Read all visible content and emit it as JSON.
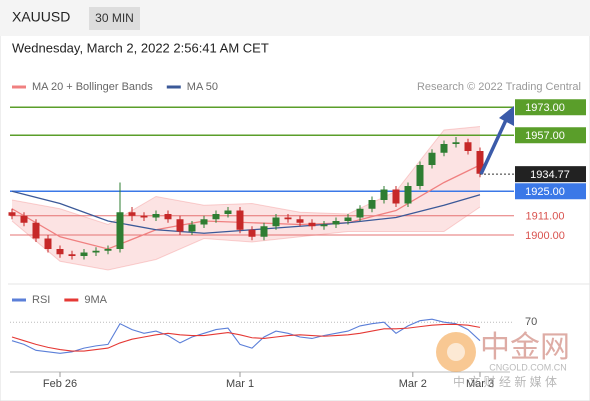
{
  "header": {
    "symbol": "XAUUSD",
    "interval": "30 MIN",
    "timestamp": "Wednesday, March 2, 2022 2:56:41 AM CET",
    "credit": "Research © 2022 Trading Central"
  },
  "chart_data": [
    {
      "type": "candlestick",
      "up_color": "#2e7d32",
      "down_color": "#c62828",
      "open": [
        1913,
        1911,
        1907,
        1898,
        1892,
        1889,
        1888,
        1890,
        1891,
        1892,
        1913,
        1911,
        1910,
        1912,
        1909,
        1902,
        1906,
        1909,
        1912,
        1914,
        1903,
        1899,
        1905,
        1910,
        1909,
        1907,
        1905,
        1906,
        1908,
        1910,
        1915,
        1920,
        1926,
        1918,
        1928,
        1940,
        1947,
        1952,
        1953,
        1948
      ],
      "high": [
        1915,
        1913,
        1909,
        1900,
        1894,
        1891,
        1892,
        1893,
        1894,
        1930,
        1916,
        1913,
        1914,
        1914,
        1911,
        1908,
        1911,
        1914,
        1916,
        1916,
        1905,
        1907,
        1912,
        1912,
        1911,
        1909,
        1908,
        1910,
        1912,
        1917,
        1922,
        1928,
        1928,
        1930,
        1942,
        1949,
        1954,
        1956,
        1955,
        1950
      ],
      "low": [
        1909,
        1905,
        1896,
        1890,
        1887,
        1886,
        1886,
        1888,
        1889,
        1890,
        1908,
        1908,
        1908,
        1907,
        1900,
        1900,
        1904,
        1907,
        1910,
        1901,
        1897,
        1897,
        1903,
        1907,
        1905,
        1903,
        1903,
        1904,
        1906,
        1908,
        1913,
        1918,
        1916,
        1916,
        1926,
        1938,
        1945,
        1950,
        1946,
        1933
      ],
      "close": [
        1911,
        1907,
        1898,
        1892,
        1889,
        1888,
        1890,
        1891,
        1892,
        1913,
        1911,
        1910,
        1912,
        1909,
        1902,
        1906,
        1909,
        1912,
        1914,
        1903,
        1899,
        1905,
        1910,
        1909,
        1907,
        1905,
        1906,
        1908,
        1910,
        1915,
        1920,
        1926,
        1918,
        1928,
        1940,
        1947,
        1952,
        1953,
        1948,
        1935
      ],
      "xlim": [
        0,
        39
      ],
      "ylim": [
        1880,
        1980
      ],
      "xticks": [
        {
          "value": 4,
          "label": "Feb 26"
        },
        {
          "value": 19,
          "label": "Mar 1"
        },
        {
          "value": 33.4,
          "label": "Mar 2"
        },
        {
          "value": 39,
          "label": "Mar 3"
        }
      ],
      "series": [
        {
          "name": "MA 20 + Bollinger Bands",
          "color": "#f08080",
          "x": [
            0,
            4,
            8,
            12,
            16,
            20,
            24,
            28,
            32,
            36,
            39
          ],
          "values": [
            1915,
            1899,
            1892,
            1903,
            1908,
            1907,
            1906,
            1907,
            1914,
            1930,
            1940
          ],
          "upper": [
            1920,
            1915,
            1906,
            1922,
            1917,
            1918,
            1913,
            1912,
            1925,
            1960,
            1962
          ],
          "lower": [
            1908,
            1885,
            1880,
            1886,
            1898,
            1896,
            1899,
            1902,
            1902,
            1902,
            1916
          ]
        },
        {
          "name": "MA 50",
          "color": "#3b5998",
          "x": [
            0,
            4,
            8,
            12,
            16,
            20,
            24,
            28,
            32,
            36,
            39
          ],
          "values": [
            1925,
            1918,
            1908,
            1903,
            1901,
            1903,
            1905,
            1907,
            1910,
            1917,
            1923
          ]
        }
      ],
      "levels": [
        {
          "value": 1973,
          "label": "1973.00",
          "color": "#5a9e2a",
          "style": "box"
        },
        {
          "value": 1957,
          "label": "1957.00",
          "color": "#5a9e2a",
          "style": "box"
        },
        {
          "value": 1925,
          "label": "1925.00",
          "color": "#3b78e7",
          "style": "box"
        },
        {
          "value": 1911,
          "label": "1911.00",
          "color": "#e57373",
          "style": "text"
        },
        {
          "value": 1900,
          "label": "1900.00",
          "color": "#e57373",
          "style": "text"
        }
      ],
      "last_price": {
        "value": 1934.77,
        "label": "1934.77",
        "color": "#222222"
      }
    },
    {
      "type": "line",
      "xlim": [
        0,
        39
      ],
      "ylim": [
        0,
        100
      ],
      "yticks": [
        70
      ],
      "series": [
        {
          "name": "RSI",
          "color": "#5b7fd8",
          "values": [
            45,
            40,
            32,
            30,
            28,
            30,
            35,
            38,
            40,
            68,
            60,
            55,
            58,
            52,
            42,
            50,
            55,
            60,
            62,
            40,
            35,
            50,
            58,
            55,
            50,
            48,
            52,
            55,
            58,
            65,
            68,
            70,
            55,
            65,
            72,
            74,
            70,
            68,
            60,
            45
          ]
        },
        {
          "name": "9MA",
          "color": "#e53935",
          "values": [
            50,
            45,
            40,
            36,
            33,
            31,
            31,
            33,
            35,
            42,
            47,
            50,
            53,
            55,
            53,
            52,
            52,
            54,
            56,
            53,
            49,
            48,
            50,
            52,
            53,
            52,
            51,
            52,
            53,
            55,
            58,
            61,
            61,
            62,
            64,
            66,
            67,
            67,
            66,
            63
          ]
        }
      ]
    }
  ],
  "watermark": {
    "name": "中金网",
    "url": "CNGOLD.COM.CN",
    "tagline": "中 文 财 经 新 媒 体"
  }
}
